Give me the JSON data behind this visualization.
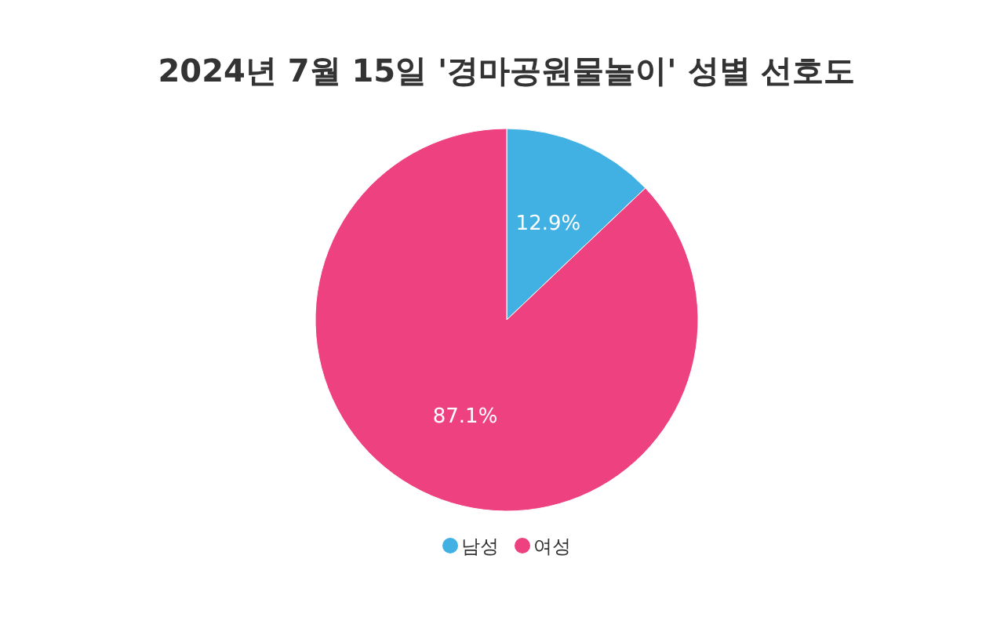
{
  "chart_data": {
    "type": "pie",
    "title": "2024년 7월 15일 '경마공원물놀이' 성별 선호도",
    "categories": [
      "남성",
      "여성"
    ],
    "values": [
      12.9,
      87.1
    ],
    "colors": [
      "#41b0e3",
      "#ee4180"
    ],
    "value_labels": [
      "12.9%",
      "87.1%"
    ],
    "legend": "bottom"
  }
}
